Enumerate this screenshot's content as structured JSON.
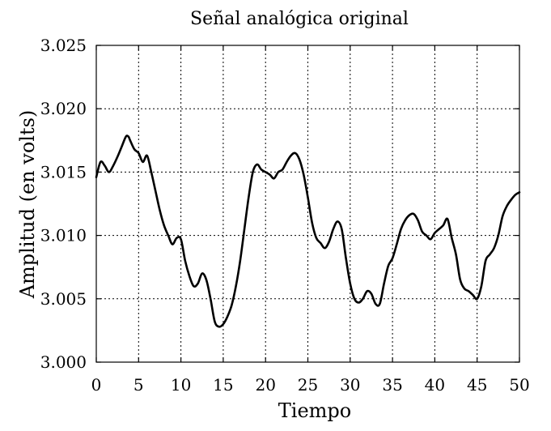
{
  "chart_data": {
    "type": "line",
    "title": "Señal analógica original",
    "xlabel": "Tiempo",
    "ylabel": "Amplitud  (en volts)",
    "xlim": [
      0,
      50
    ],
    "ylim": [
      3.0,
      3.025
    ],
    "x_ticks": [
      0,
      5,
      10,
      15,
      20,
      25,
      30,
      35,
      40,
      45,
      50
    ],
    "x_tick_labels": [
      "0",
      "5",
      "10",
      "15",
      "20",
      "25",
      "30",
      "35",
      "40",
      "45",
      "50"
    ],
    "y_ticks": [
      3.0,
      3.005,
      3.01,
      3.015,
      3.02,
      3.025
    ],
    "y_tick_labels": [
      "3.000",
      "3.005",
      "3.010",
      "3.015",
      "3.020",
      "3.025"
    ],
    "grid": true,
    "line_color": "#000000",
    "series": [
      {
        "x": [
          0.0,
          0.5,
          1.0,
          1.5,
          2.0,
          2.5,
          3.0,
          3.5,
          3.8,
          4.0,
          4.5,
          5.0,
          5.5,
          6.0,
          6.5,
          7.0,
          7.5,
          8.0,
          8.5,
          9.0,
          9.5,
          10.0,
          10.5,
          11.0,
          11.5,
          12.0,
          12.5,
          13.0,
          13.5,
          14.0,
          14.5,
          15.0,
          15.5,
          16.0,
          16.5,
          17.0,
          17.5,
          18.0,
          18.5,
          19.0,
          19.5,
          20.0,
          20.5,
          21.0,
          21.5,
          22.0,
          22.5,
          23.0,
          23.5,
          24.0,
          24.5,
          25.0,
          25.5,
          26.0,
          26.5,
          27.0,
          27.5,
          28.0,
          28.5,
          29.0,
          29.5,
          30.0,
          30.5,
          31.0,
          31.5,
          32.0,
          32.5,
          33.0,
          33.5,
          34.0,
          34.5,
          35.0,
          35.5,
          36.0,
          36.5,
          37.0,
          37.5,
          38.0,
          38.5,
          39.0,
          39.5,
          40.0,
          40.5,
          41.0,
          41.5,
          42.0,
          42.5,
          43.0,
          43.5,
          44.0,
          44.5,
          45.0,
          45.5,
          46.0,
          46.5,
          47.0,
          47.5,
          48.0,
          48.5,
          49.0,
          49.5,
          50.0
        ],
        "values": [
          3.0146,
          3.0158,
          3.0155,
          3.015,
          3.0155,
          3.0162,
          3.017,
          3.0178,
          3.0178,
          3.0175,
          3.0168,
          3.0165,
          3.0158,
          3.0163,
          3.015,
          3.0135,
          3.012,
          3.0108,
          3.01,
          3.0093,
          3.0098,
          3.0097,
          3.008,
          3.0068,
          3.006,
          3.0062,
          3.007,
          3.0065,
          3.005,
          3.0032,
          3.0028,
          3.003,
          3.0036,
          3.0045,
          3.006,
          3.008,
          3.0105,
          3.013,
          3.015,
          3.0156,
          3.0152,
          3.015,
          3.0148,
          3.0145,
          3.015,
          3.0152,
          3.0158,
          3.0163,
          3.0165,
          3.016,
          3.0148,
          3.013,
          3.011,
          3.0098,
          3.0094,
          3.009,
          3.0095,
          3.0105,
          3.0111,
          3.0105,
          3.0082,
          3.0062,
          3.005,
          3.0047,
          3.005,
          3.0056,
          3.0054,
          3.0046,
          3.0046,
          3.0062,
          3.0076,
          3.0082,
          3.0093,
          3.0105,
          3.0112,
          3.0116,
          3.0117,
          3.0112,
          3.0103,
          3.01,
          3.0097,
          3.0102,
          3.0105,
          3.0108,
          3.0113,
          3.0098,
          3.0085,
          3.0065,
          3.0058,
          3.0056,
          3.0053,
          3.005,
          3.006,
          3.008,
          3.0085,
          3.009,
          3.01,
          3.0115,
          3.0123,
          3.0128,
          3.0132,
          3.0134
        ]
      }
    ]
  }
}
